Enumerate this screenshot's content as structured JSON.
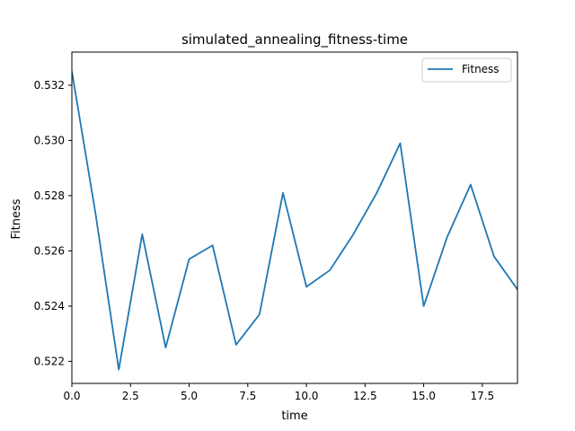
{
  "chart_data": {
    "type": "line",
    "title": "simulated_annealing_fitness-time",
    "xlabel": "time",
    "ylabel": "Fitness",
    "xlim": [
      0,
      19
    ],
    "ylim": [
      0.5212,
      0.5332
    ],
    "xticks": [
      0,
      2.5,
      5,
      7.5,
      10,
      12.5,
      15,
      17.5
    ],
    "xtick_labels": [
      "0.0",
      "2.5",
      "5.0",
      "7.5",
      "10.0",
      "12.5",
      "15.0",
      "17.5"
    ],
    "yticks": [
      0.522,
      0.524,
      0.526,
      0.528,
      0.53,
      0.532
    ],
    "ytick_labels": [
      "0.522",
      "0.524",
      "0.526",
      "0.528",
      "0.530",
      "0.532"
    ],
    "grid": false,
    "legend_position": "top-right",
    "series": [
      {
        "name": "Fitness",
        "color": "#1f77b4",
        "x": [
          0,
          1,
          2,
          3,
          4,
          5,
          6,
          7,
          8,
          9,
          10,
          11,
          12,
          13,
          14,
          15,
          16,
          17,
          18,
          19
        ],
        "y": [
          0.5325,
          0.5274,
          0.5217,
          0.5266,
          0.5225,
          0.5257,
          0.5262,
          0.5226,
          0.5237,
          0.5281,
          0.5247,
          0.5253,
          0.5266,
          0.5281,
          0.5299,
          0.524,
          0.5265,
          0.5284,
          0.5258,
          0.5246
        ]
      }
    ]
  }
}
